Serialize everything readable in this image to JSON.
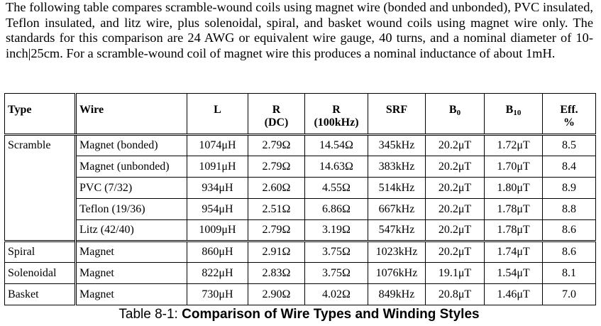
{
  "intro": "The following table compares scramble-wound coils using magnet wire (bonded and unbonded), PVC insulated, Teflon insulated, and litz wire, plus solenoidal, spiral, and basket wound coils using magnet wire only. The standards for this comparison are 24 AWG or equivalent wire gauge, 40 turns, and a nominal diameter of 10-inch|25cm. For a scramble-wound coil of magnet wire this produces a nominal inductance of about 1mH.",
  "table": {
    "headers": {
      "type": "Type",
      "wire": "Wire",
      "L": "L",
      "r_dc_1": "R",
      "r_dc_2": "(DC)",
      "r_ac_1": "R",
      "r_ac_2": "(100kHz)",
      "srf": "SRF",
      "b0_main": "B",
      "b0_sub": "0",
      "b10_main": "B",
      "b10_sub": "10",
      "eff_1": "Eff.",
      "eff_2": "%"
    },
    "rows": [
      {
        "type": "Scramble",
        "wire": "Magnet (bonded)",
        "L": "1074μH",
        "r_dc": "2.79Ω",
        "r_ac": "14.54Ω",
        "srf": "345kHz",
        "b0": "20.2μT",
        "b10": "1.72μT",
        "eff": "8.5"
      },
      {
        "type": "",
        "wire": "Magnet (unbonded)",
        "L": "1091μH",
        "r_dc": "2.79Ω",
        "r_ac": "14.63Ω",
        "srf": "383kHz",
        "b0": "20.2μT",
        "b10": "1.70μT",
        "eff": "8.4"
      },
      {
        "type": "",
        "wire": "PVC (7/32)",
        "L": "934μH",
        "r_dc": "2.60Ω",
        "r_ac": "4.55Ω",
        "srf": "514kHz",
        "b0": "20.2μT",
        "b10": "1.80μT",
        "eff": "8.9"
      },
      {
        "type": "",
        "wire": "Teflon (19/36)",
        "L": "954μH",
        "r_dc": "2.51Ω",
        "r_ac": "6.86Ω",
        "srf": "667kHz",
        "b0": "20.2μT",
        "b10": "1.78μT",
        "eff": "8.8"
      },
      {
        "type": "",
        "wire": "Litz (42/40)",
        "L": "1009μH",
        "r_dc": "2.79Ω",
        "r_ac": "3.19Ω",
        "srf": "547kHz",
        "b0": "20.2μT",
        "b10": "1.78μT",
        "eff": "8.6"
      },
      {
        "type": "Spiral",
        "wire": "Magnet",
        "L": "860μH",
        "r_dc": "2.91Ω",
        "r_ac": "3.75Ω",
        "srf": "1023kHz",
        "b0": "20.2μT",
        "b10": "1.74μT",
        "eff": "8.6"
      },
      {
        "type": "Solenoidal",
        "wire": "Magnet",
        "L": "822μH",
        "r_dc": "2.83Ω",
        "r_ac": "3.75Ω",
        "srf": "1076kHz",
        "b0": "19.1μT",
        "b10": "1.54μT",
        "eff": "8.1"
      },
      {
        "type": "Basket",
        "wire": "Magnet",
        "L": "730μH",
        "r_dc": "2.90Ω",
        "r_ac": "4.02Ω",
        "srf": "849kHz",
        "b0": "20.8μT",
        "b10": "1.46μT",
        "eff": "7.0"
      }
    ]
  },
  "caption": {
    "prefix": "Table 8-1: ",
    "title": "Comparison of Wire Types and Winding Styles"
  }
}
